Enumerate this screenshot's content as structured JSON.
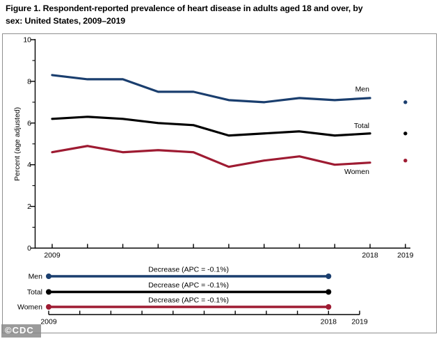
{
  "title": {
    "line1": "Figure 1. Respondent-reported prevalence of heart disease in adults aged 18 and over, by",
    "line2": "sex: United States, 2009–2019"
  },
  "watermark": "©CDC",
  "colors": {
    "men": "#1a3e6e",
    "total": "#000000",
    "women": "#9e1b32",
    "axis": "#000000",
    "figure_border": "#8e8e8e"
  },
  "chart_data": [
    {
      "type": "line",
      "panel": "main",
      "title": "",
      "xlabel": "",
      "ylabel": "Percent (age adjusted)",
      "x": [
        2009,
        2010,
        2011,
        2012,
        2013,
        2014,
        2015,
        2016,
        2017,
        2018
      ],
      "series": [
        {
          "name": "Men",
          "color": "#1a3e6e",
          "values": [
            8.3,
            8.1,
            8.1,
            7.5,
            7.5,
            7.1,
            7.0,
            7.2,
            7.1,
            7.2
          ],
          "value_2019": 7.0
        },
        {
          "name": "Total",
          "color": "#000000",
          "values": [
            6.2,
            6.3,
            6.2,
            6.0,
            5.9,
            5.4,
            5.5,
            5.6,
            5.4,
            5.5
          ],
          "value_2019": 5.5
        },
        {
          "name": "Women",
          "color": "#9e1b32",
          "values": [
            4.6,
            4.9,
            4.6,
            4.7,
            4.6,
            3.9,
            4.2,
            4.4,
            4.0,
            4.1
          ],
          "value_2019": 4.2
        }
      ],
      "ylim": [
        0,
        10
      ],
      "yticks": [
        0,
        2,
        4,
        6,
        8,
        10
      ],
      "ytick_minor": [
        1,
        3,
        5,
        7,
        9
      ],
      "xticks": [
        2009,
        2010,
        2011,
        2012,
        2013,
        2014,
        2015,
        2016,
        2017,
        2018,
        2019
      ],
      "xtick_labels": [
        {
          "year": 2009,
          "label": "2009"
        },
        {
          "year": 2018,
          "label": "2018"
        },
        {
          "year": 2019,
          "label": "2019"
        }
      ],
      "grid": false,
      "legend": "inline-labels"
    },
    {
      "type": "line",
      "panel": "apc-trend",
      "rows": [
        {
          "name": "Men",
          "color": "#1a3e6e",
          "annotation": "Decrease (APC = -0.1%)",
          "span_years": [
            2009,
            2018
          ]
        },
        {
          "name": "Total",
          "color": "#000000",
          "annotation": "Decrease (APC = -0.1%)",
          "span_years": [
            2009,
            2018
          ]
        },
        {
          "name": "Women",
          "color": "#9e1b32",
          "annotation": "Decrease (APC = -0.1%)",
          "span_years": [
            2009,
            2018
          ]
        }
      ],
      "xticks": [
        2009,
        2010,
        2011,
        2012,
        2013,
        2014,
        2015,
        2016,
        2017,
        2018,
        2019
      ],
      "xtick_labels": [
        {
          "year": 2009,
          "label": "2009"
        },
        {
          "year": 2018,
          "label": "2018"
        },
        {
          "year": 2019,
          "label": "2019"
        }
      ]
    }
  ]
}
